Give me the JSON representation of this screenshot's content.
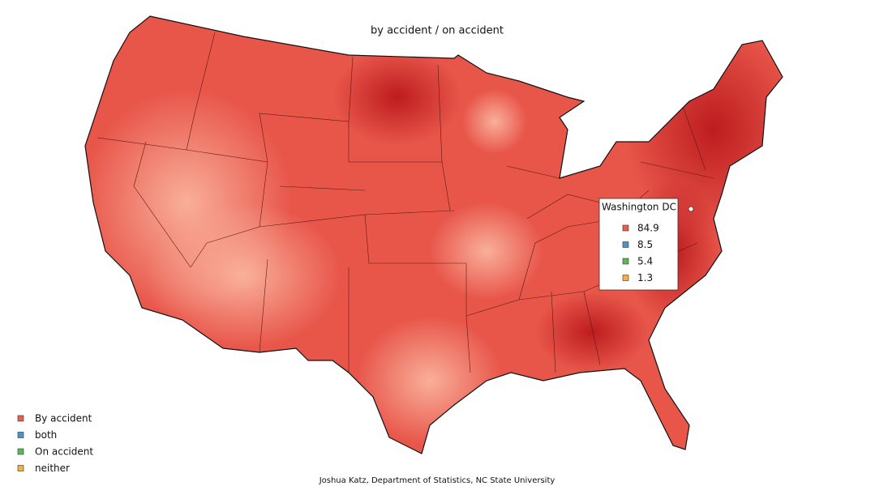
{
  "title": "by accident / on accident",
  "legend": [
    {
      "label": "By accident",
      "color": "#e8604c"
    },
    {
      "label": "both",
      "color": "#4f93c4"
    },
    {
      "label": "On accident",
      "color": "#5cb85c"
    },
    {
      "label": "neither",
      "color": "#f5b041"
    }
  ],
  "tooltip": {
    "location": "Washington DC",
    "values": [
      84.9,
      8.5,
      5.4,
      1.3
    ]
  },
  "credit": "Joshua Katz, Department of Statistics, NC State University"
}
